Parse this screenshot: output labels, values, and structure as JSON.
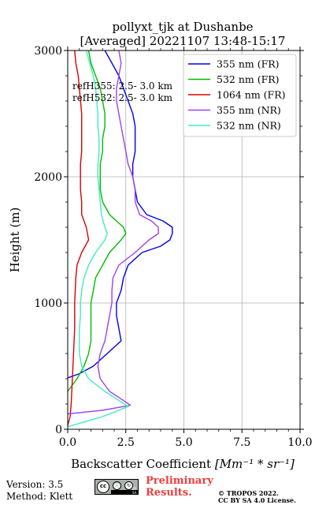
{
  "chart_data": {
    "type": "line",
    "title_line1": "pollyxt_tjk at Dushanbe",
    "title_line2": "[Averaged] 20221107 13:48-15:17",
    "xlabel_text": "Backscatter Coefficient ",
    "xlabel_unit": "[Mm⁻¹ * sr⁻¹]",
    "ylabel": "Height (m)",
    "xlim": [
      0,
      10
    ],
    "ylim": [
      0,
      3000
    ],
    "xticks": [
      0,
      2.5,
      5,
      7.5,
      10
    ],
    "xtick_labels": [
      "0.0",
      "2.5",
      "5.0",
      "7.5",
      "10.0"
    ],
    "yticks": [
      0,
      1000,
      2000,
      3000
    ],
    "ytick_labels": [
      "0",
      "1000",
      "2000",
      "3000"
    ],
    "grid": true,
    "legend_position": "top-right",
    "annotations": [
      "refH355:  2.5- 3.0 km",
      "refH532:  2.5- 3.0 km"
    ],
    "series": [
      {
        "name": "355 nm (FR)",
        "color": "#0000ee",
        "points": [
          [
            -0.1,
            400
          ],
          [
            0.5,
            440
          ],
          [
            1.1,
            500
          ],
          [
            1.7,
            600
          ],
          [
            2.3,
            700
          ],
          [
            2.2,
            800
          ],
          [
            2.1,
            900
          ],
          [
            2.1,
            1000
          ],
          [
            2.3,
            1100
          ],
          [
            2.4,
            1200
          ],
          [
            2.6,
            1300
          ],
          [
            3.2,
            1400
          ],
          [
            4.0,
            1450
          ],
          [
            4.4,
            1500
          ],
          [
            4.5,
            1550
          ],
          [
            4.5,
            1600
          ],
          [
            4.1,
            1650
          ],
          [
            3.4,
            1700
          ],
          [
            3.0,
            1800
          ],
          [
            2.9,
            1900
          ],
          [
            2.8,
            2000
          ],
          [
            2.8,
            2100
          ],
          [
            2.9,
            2200
          ],
          [
            2.9,
            2300
          ],
          [
            2.9,
            2400
          ],
          [
            2.8,
            2500
          ],
          [
            2.6,
            2600
          ],
          [
            2.4,
            2700
          ],
          [
            2.2,
            2800
          ],
          [
            1.9,
            2900
          ],
          [
            1.6,
            3000
          ]
        ]
      },
      {
        "name": "532 nm (FR)",
        "color": "#00bb00",
        "points": [
          [
            0.0,
            300
          ],
          [
            0.4,
            400
          ],
          [
            0.7,
            500
          ],
          [
            0.9,
            600
          ],
          [
            1.0,
            700
          ],
          [
            1.0,
            800
          ],
          [
            1.0,
            900
          ],
          [
            1.0,
            1000
          ],
          [
            1.1,
            1100
          ],
          [
            1.2,
            1200
          ],
          [
            1.5,
            1300
          ],
          [
            1.8,
            1400
          ],
          [
            2.3,
            1500
          ],
          [
            2.5,
            1550
          ],
          [
            2.4,
            1600
          ],
          [
            2.1,
            1650
          ],
          [
            1.8,
            1700
          ],
          [
            1.5,
            1800
          ],
          [
            1.4,
            1900
          ],
          [
            1.4,
            2000
          ],
          [
            1.4,
            2100
          ],
          [
            1.5,
            2200
          ],
          [
            1.5,
            2300
          ],
          [
            1.6,
            2400
          ],
          [
            1.6,
            2500
          ],
          [
            1.5,
            2600
          ],
          [
            1.4,
            2700
          ],
          [
            1.2,
            2800
          ],
          [
            1.0,
            2900
          ],
          [
            0.9,
            3000
          ]
        ]
      },
      {
        "name": "1064 nm (FR)",
        "color": "#dd0000",
        "points": [
          [
            0.0,
            30
          ],
          [
            0.1,
            100
          ],
          [
            0.15,
            200
          ],
          [
            0.2,
            400
          ],
          [
            0.25,
            600
          ],
          [
            0.3,
            800
          ],
          [
            0.3,
            1000
          ],
          [
            0.35,
            1200
          ],
          [
            0.4,
            1300
          ],
          [
            0.6,
            1400
          ],
          [
            0.9,
            1500
          ],
          [
            0.8,
            1600
          ],
          [
            0.6,
            1700
          ],
          [
            0.6,
            1800
          ],
          [
            0.55,
            1900
          ],
          [
            0.55,
            2000
          ],
          [
            0.55,
            2100
          ],
          [
            0.6,
            2200
          ],
          [
            0.6,
            2300
          ],
          [
            0.6,
            2400
          ],
          [
            0.6,
            2500
          ],
          [
            0.55,
            2600
          ],
          [
            0.5,
            2700
          ],
          [
            0.45,
            2800
          ],
          [
            0.35,
            2900
          ],
          [
            0.3,
            3000
          ]
        ]
      },
      {
        "name": "355 nm (NR)",
        "color": "#a040ee",
        "points": [
          [
            -0.1,
            120
          ],
          [
            1.5,
            150
          ],
          [
            2.7,
            190
          ],
          [
            2.3,
            240
          ],
          [
            1.8,
            300
          ],
          [
            1.4,
            400
          ],
          [
            1.3,
            500
          ],
          [
            1.4,
            600
          ],
          [
            1.6,
            700
          ],
          [
            1.7,
            800
          ],
          [
            1.8,
            900
          ],
          [
            1.9,
            1000
          ],
          [
            1.9,
            1100
          ],
          [
            1.95,
            1200
          ],
          [
            2.2,
            1300
          ],
          [
            2.9,
            1400
          ],
          [
            3.5,
            1500
          ],
          [
            3.9,
            1550
          ],
          [
            3.9,
            1600
          ],
          [
            3.6,
            1650
          ],
          [
            3.1,
            1700
          ],
          [
            2.9,
            1800
          ],
          [
            2.9,
            1900
          ],
          [
            2.8,
            2000
          ],
          [
            2.6,
            2100
          ],
          [
            2.5,
            2200
          ],
          [
            2.4,
            2300
          ],
          [
            2.3,
            2400
          ],
          [
            2.2,
            2500
          ],
          [
            2.1,
            2600
          ],
          [
            2.1,
            2700
          ],
          [
            2.2,
            2800
          ],
          [
            2.3,
            2900
          ],
          [
            2.2,
            3000
          ]
        ]
      },
      {
        "name": "532 nm (NR)",
        "color": "#40eebb",
        "points": [
          [
            0.0,
            20
          ],
          [
            1.5,
            100
          ],
          [
            2.6,
            180
          ],
          [
            1.6,
            300
          ],
          [
            0.9,
            400
          ],
          [
            0.6,
            500
          ],
          [
            0.5,
            600
          ],
          [
            0.5,
            700
          ],
          [
            0.5,
            800
          ],
          [
            0.55,
            900
          ],
          [
            0.55,
            1000
          ],
          [
            0.6,
            1100
          ],
          [
            0.7,
            1200
          ],
          [
            0.9,
            1300
          ],
          [
            1.2,
            1400
          ],
          [
            1.6,
            1500
          ],
          [
            1.7,
            1550
          ],
          [
            1.6,
            1600
          ],
          [
            1.45,
            1700
          ],
          [
            1.4,
            1800
          ],
          [
            1.35,
            1900
          ],
          [
            1.3,
            2000
          ],
          [
            1.3,
            2100
          ],
          [
            1.35,
            2200
          ],
          [
            1.35,
            2300
          ],
          [
            1.3,
            2400
          ],
          [
            1.3,
            2500
          ],
          [
            1.25,
            2600
          ],
          [
            1.2,
            2700
          ],
          [
            1.1,
            2800
          ],
          [
            0.95,
            2900
          ],
          [
            0.8,
            3000
          ]
        ]
      }
    ]
  },
  "footer": {
    "version": "Version: 3.5",
    "method": "Method: Klett",
    "license_badge": {
      "cc": "cc",
      "by": "ⓘ",
      "sa": "↻",
      "text": "BY   SA"
    },
    "preliminary_line1": "Preliminary",
    "preliminary_line2": "Results.",
    "copyright_line1": "© TROPOS 2022.",
    "copyright_line2": "CC BY SA 4.0 License."
  }
}
